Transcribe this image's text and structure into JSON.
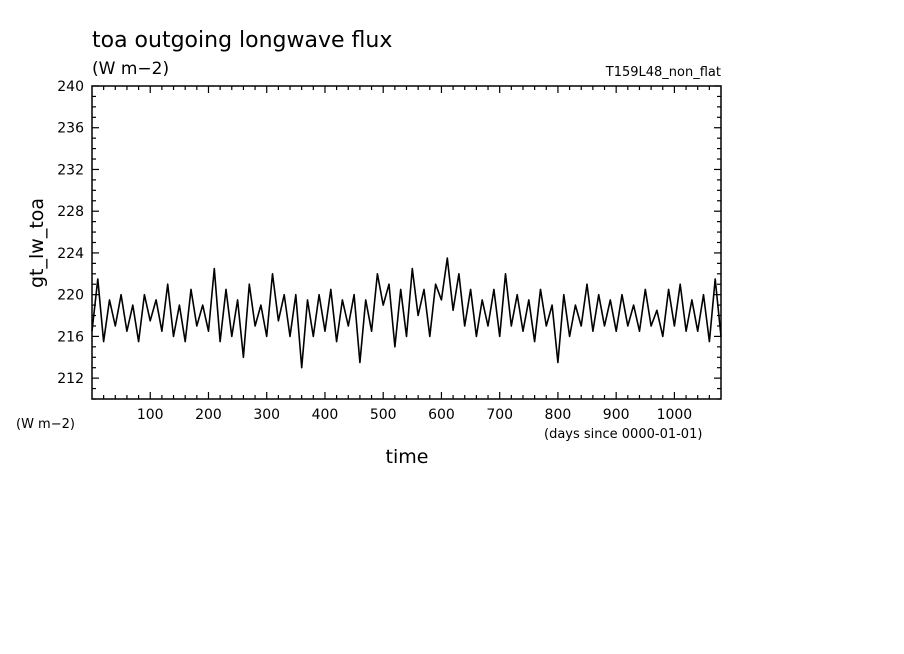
{
  "chart_data": {
    "type": "line",
    "title": "toa outgoing longwave flux",
    "units": "(W m−2)",
    "run_label": "T159L48_non_flat",
    "ylabel": "gt_lw_toa",
    "y_units_label": "(W m−2)",
    "xlabel": "time",
    "x_units_label": "(days since 0000-01-01)",
    "xlim": [
      0,
      1080
    ],
    "ylim": [
      210,
      240
    ],
    "xticks": [
      100,
      200,
      300,
      400,
      500,
      600,
      700,
      800,
      900,
      1000
    ],
    "yticks": [
      212,
      216,
      220,
      224,
      228,
      232,
      236,
      240
    ],
    "grid": false,
    "line_color": "#000000",
    "series": [
      {
        "x": [
          0,
          10,
          20,
          30,
          40,
          50,
          60,
          70,
          80,
          90,
          100,
          110,
          120,
          130,
          140,
          150,
          160,
          170,
          180,
          190,
          200,
          210,
          220,
          230,
          240,
          250,
          260,
          270,
          280,
          290,
          300,
          310,
          320,
          330,
          340,
          350,
          360,
          370,
          380,
          390,
          400,
          410,
          420,
          430,
          440,
          450,
          460,
          470,
          480,
          490,
          500,
          510,
          520,
          530,
          540,
          550,
          560,
          570,
          580,
          590,
          600,
          610,
          620,
          630,
          640,
          650,
          660,
          670,
          680,
          690,
          700,
          710,
          720,
          730,
          740,
          750,
          760,
          770,
          780,
          790,
          800,
          810,
          820,
          830,
          840,
          850,
          860,
          870,
          880,
          890,
          900,
          910,
          920,
          930,
          940,
          950,
          960,
          970,
          980,
          990,
          1000,
          1010,
          1020,
          1030,
          1040,
          1050,
          1060,
          1070,
          1080
        ],
        "values": [
          216.5,
          221.5,
          215.5,
          219.5,
          217.0,
          220.0,
          216.5,
          219.0,
          215.5,
          220.0,
          217.5,
          219.5,
          216.5,
          221.0,
          216.0,
          219.0,
          215.5,
          220.5,
          217.0,
          219.0,
          216.5,
          222.5,
          215.5,
          220.5,
          216.0,
          219.5,
          214.0,
          221.0,
          217.0,
          219.0,
          216.0,
          222.0,
          217.5,
          220.0,
          216.0,
          220.0,
          213.0,
          219.5,
          216.0,
          220.0,
          216.5,
          220.5,
          215.5,
          219.5,
          217.0,
          220.0,
          213.5,
          219.5,
          216.5,
          222.0,
          219.0,
          221.0,
          215.0,
          220.5,
          216.0,
          222.5,
          218.0,
          220.5,
          216.0,
          221.0,
          219.5,
          223.5,
          218.5,
          222.0,
          217.0,
          220.5,
          216.0,
          219.5,
          217.0,
          220.5,
          216.0,
          222.0,
          217.0,
          220.0,
          216.5,
          219.5,
          215.5,
          220.5,
          217.0,
          219.0,
          213.5,
          220.0,
          216.0,
          219.0,
          217.0,
          221.0,
          216.5,
          220.0,
          217.0,
          219.5,
          216.5,
          220.0,
          217.0,
          219.0,
          216.5,
          220.5,
          217.0,
          218.5,
          216.0,
          220.5,
          217.0,
          221.0,
          216.5,
          219.5,
          216.5,
          220.0,
          215.5,
          221.5,
          216.0
        ]
      }
    ]
  }
}
